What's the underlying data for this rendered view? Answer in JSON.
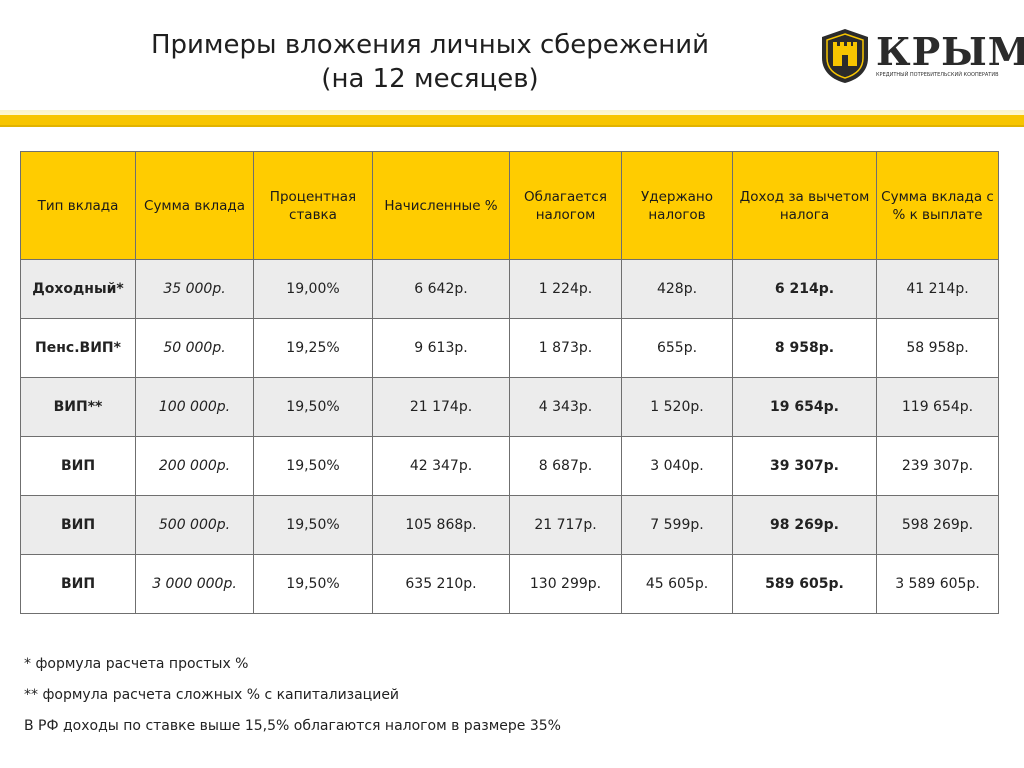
{
  "title_line1": "Примеры вложения личных сбережений",
  "title_line2": "(на 12 месяцев)",
  "logo": {
    "word": "КРЫМ",
    "subtitle": "КРЕДИТНЫЙ ПОТРЕБИТЕЛЬСКИЙ КООПЕРАТИВ",
    "shield_color": "#2b2b2b",
    "emblem_color": "#f7c500"
  },
  "accent_color": "#f7c500",
  "table": {
    "headers": [
      "Тип вклада",
      "Сумма вклада",
      "Процентная ставка",
      "Начисленные %",
      "Облагается налогом",
      "Удержано налогов",
      "Доход за вычетом налога",
      "Сумма вклада с % к выплате"
    ],
    "rows": [
      [
        "Доходный*",
        "35 000р.",
        "19,00%",
        "6 642р.",
        "1 224р.",
        "428р.",
        "6 214р.",
        "41 214р."
      ],
      [
        "Пенс.ВИП*",
        "50 000р.",
        "19,25%",
        "9 613р.",
        "1 873р.",
        "655р.",
        "8 958р.",
        "58 958р."
      ],
      [
        "ВИП**",
        "100 000р.",
        "19,50%",
        "21 174р.",
        "4 343р.",
        "1 520р.",
        "19 654р.",
        "119 654р."
      ],
      [
        "ВИП",
        "200 000р.",
        "19,50%",
        "42 347р.",
        "8 687р.",
        "3 040р.",
        "39 307р.",
        "239 307р."
      ],
      [
        "ВИП",
        "500 000р.",
        "19,50%",
        "105 868р.",
        "21 717р.",
        "7 599р.",
        "98 269р.",
        "598 269р."
      ],
      [
        "ВИП",
        "3 000 000р.",
        "19,50%",
        "635 210р.",
        "130 299р.",
        "45 605р.",
        "589 605р.",
        "3 589 605р."
      ]
    ]
  },
  "notes": [
    "* формула расчета простых %",
    "** формула расчета сложных % с капитализацией",
    "В РФ доходы по ставке выше 15,5% облагаются налогом в размере 35%"
  ]
}
